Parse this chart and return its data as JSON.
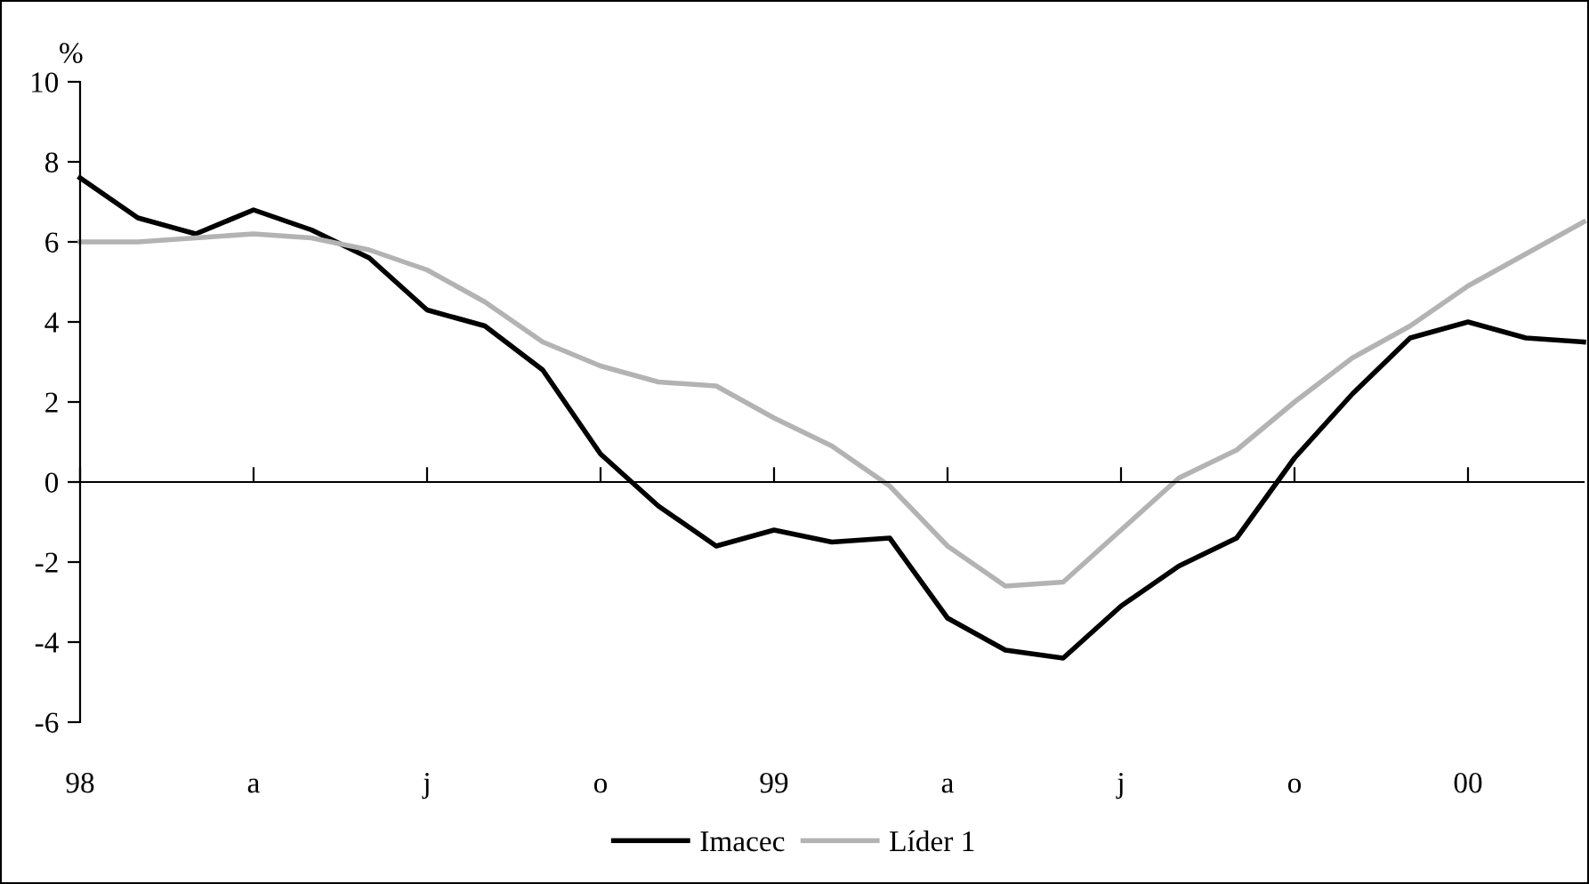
{
  "chart_data": {
    "type": "line",
    "ylabel": "%",
    "categories": [
      "98",
      null,
      null,
      "a",
      null,
      null,
      "j",
      null,
      null,
      "o",
      null,
      null,
      "99",
      null,
      null,
      "a",
      null,
      null,
      "j",
      null,
      null,
      "o",
      null,
      null,
      "00",
      null,
      null
    ],
    "series": [
      {
        "name": "Imacec",
        "color": "#000000",
        "values": [
          7.6,
          6.6,
          6.2,
          6.8,
          6.3,
          5.6,
          4.3,
          3.9,
          2.8,
          0.7,
          -0.6,
          -1.6,
          -1.2,
          -1.5,
          -1.4,
          -3.4,
          -4.2,
          -4.4,
          -3.1,
          -2.1,
          -1.4,
          0.6,
          2.2,
          3.6,
          4.0,
          3.6,
          3.5
        ]
      },
      {
        "name": "Líder 1",
        "color": "#b3b3b3",
        "values": [
          6.0,
          6.0,
          6.1,
          6.2,
          6.1,
          5.8,
          5.3,
          4.5,
          3.5,
          2.9,
          2.5,
          2.4,
          1.6,
          0.9,
          -0.1,
          -1.6,
          -2.6,
          -2.5,
          -1.2,
          0.1,
          0.8,
          2.0,
          3.1,
          3.9,
          4.9,
          5.7,
          6.5
        ]
      }
    ],
    "ylim": [
      -6,
      10
    ],
    "yticks": [
      -6,
      -4,
      -2,
      0,
      2,
      4,
      6,
      8,
      10
    ],
    "legend": "bottom",
    "marker": "none",
    "line_style": "solid"
  }
}
